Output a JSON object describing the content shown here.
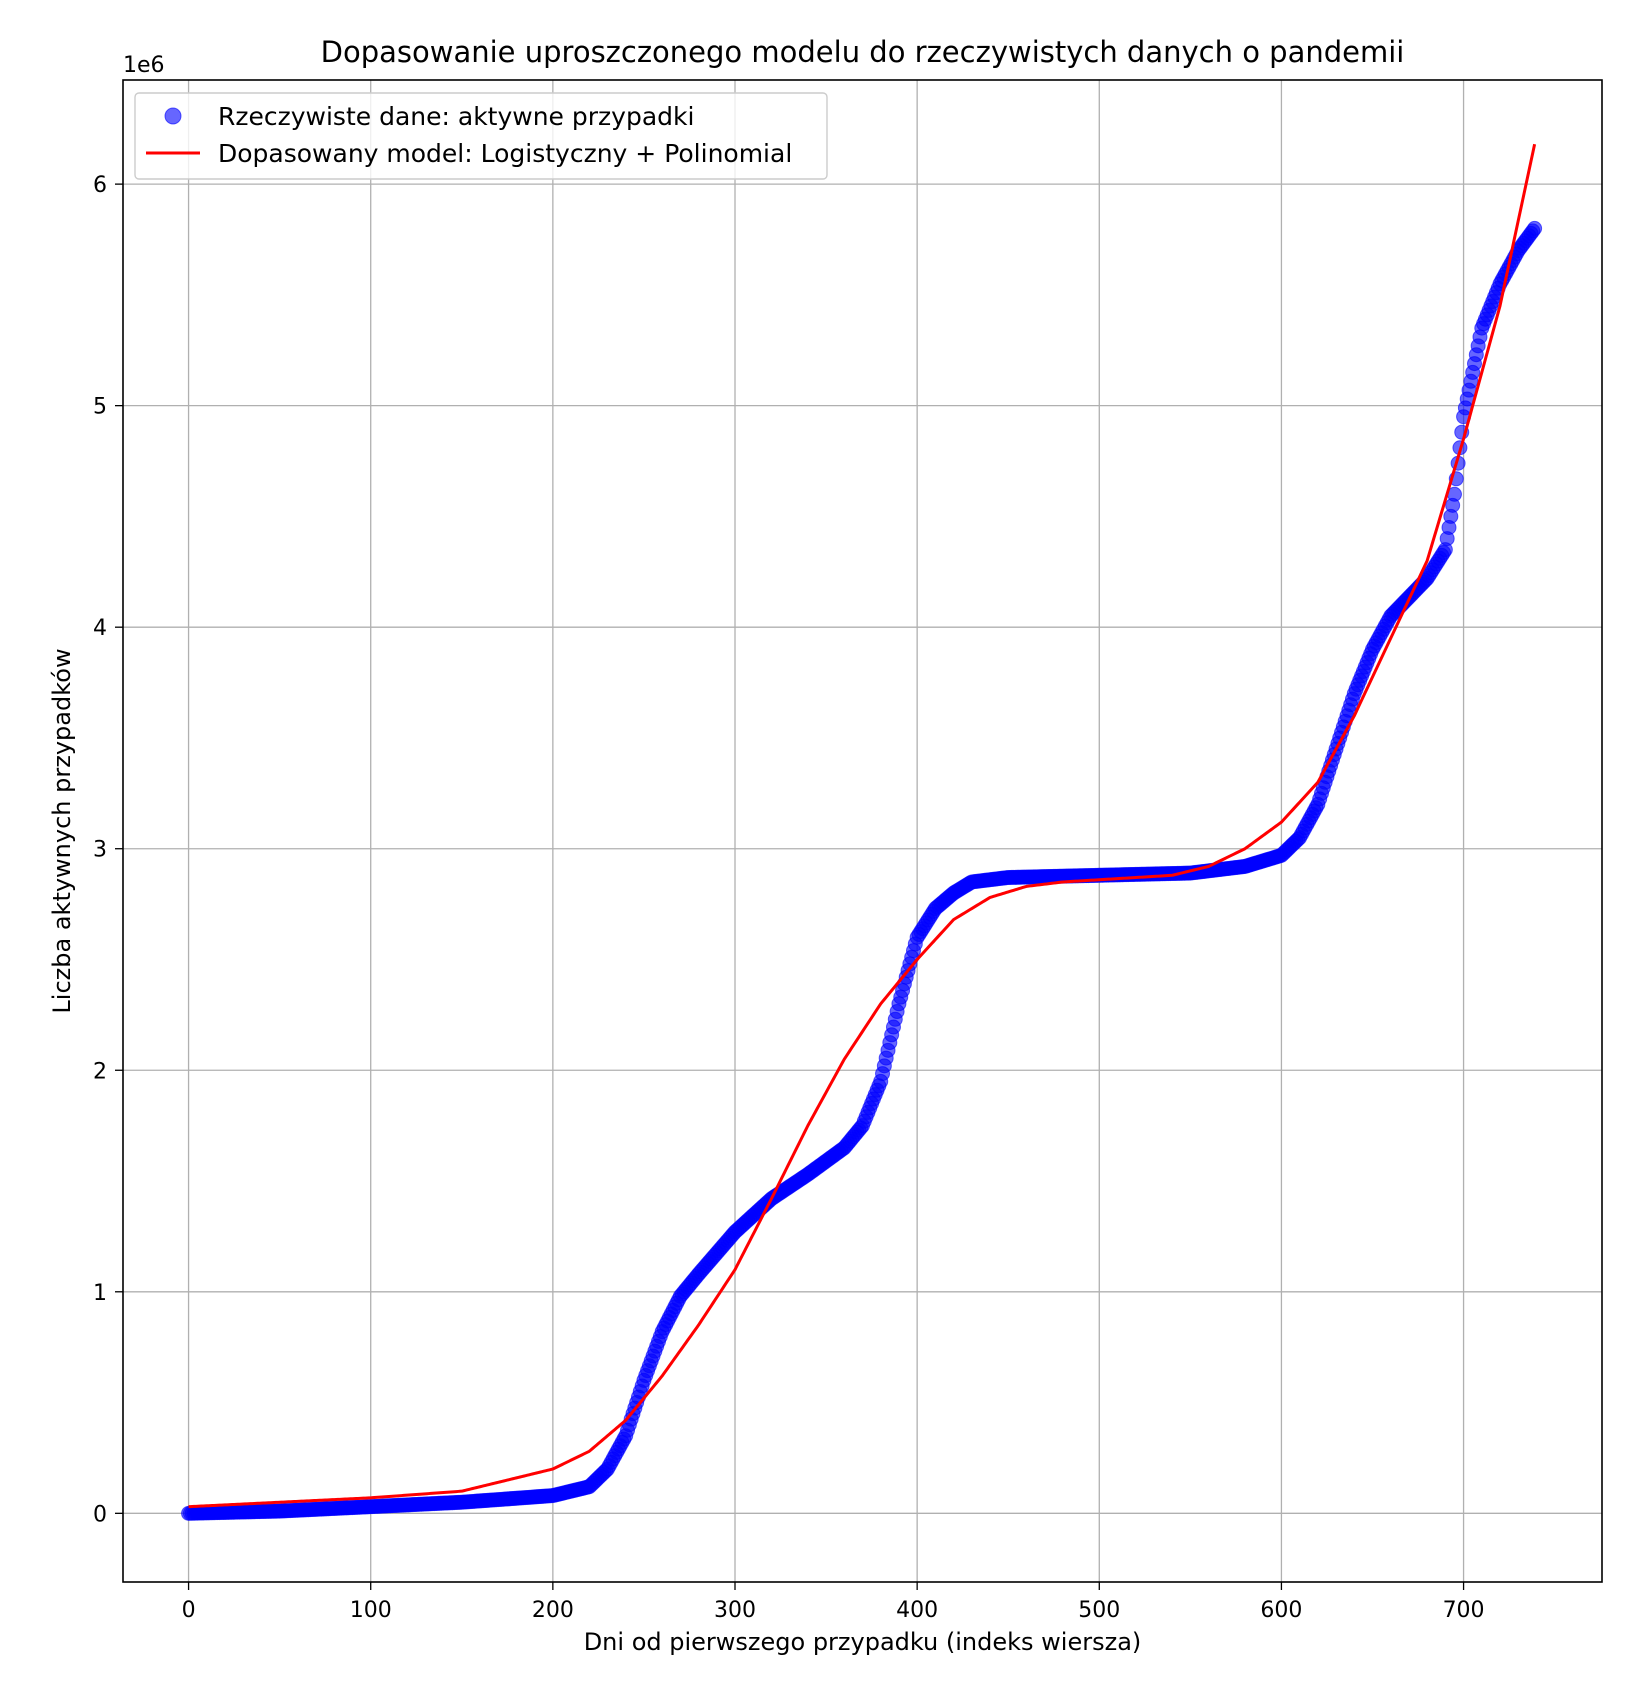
{
  "chart_data": {
    "type": "scatter",
    "title": "Dopasowanie uproszczonego modelu do rzeczywistych danych o pandemii",
    "xlabel": "Dni od pierwszego przypadku (indeks wiersza)",
    "ylabel": "Liczba aktywnych przypadków",
    "y_offset_text": "1e6",
    "xlim": [
      -36,
      776
    ],
    "ylim": [
      -0.31,
      6.47
    ],
    "x_ticks": [
      0,
      100,
      200,
      300,
      400,
      500,
      600,
      700
    ],
    "x_tick_labels": [
      "0",
      "100",
      "200",
      "300",
      "400",
      "500",
      "600",
      "700"
    ],
    "y_ticks": [
      0,
      1,
      2,
      3,
      4,
      5,
      6
    ],
    "y_tick_labels": [
      "0",
      "1",
      "2",
      "3",
      "4",
      "5",
      "6"
    ],
    "grid": true,
    "legend_position": "top-left",
    "series": [
      {
        "name": "Rzeczywiste dane: aktywne przypadki",
        "kind": "scatter",
        "color": "#0000ff",
        "x_range": [
          0,
          739
        ],
        "anchors": [
          [
            0,
            0.0
          ],
          [
            50,
            0.01
          ],
          [
            100,
            0.03
          ],
          [
            150,
            0.05
          ],
          [
            200,
            0.08
          ],
          [
            220,
            0.12
          ],
          [
            230,
            0.2
          ],
          [
            240,
            0.35
          ],
          [
            250,
            0.6
          ],
          [
            260,
            0.82
          ],
          [
            270,
            0.98
          ],
          [
            280,
            1.08
          ],
          [
            300,
            1.27
          ],
          [
            320,
            1.42
          ],
          [
            340,
            1.53
          ],
          [
            360,
            1.65
          ],
          [
            370,
            1.75
          ],
          [
            380,
            1.95
          ],
          [
            390,
            2.3
          ],
          [
            400,
            2.6
          ],
          [
            410,
            2.73
          ],
          [
            420,
            2.8
          ],
          [
            430,
            2.85
          ],
          [
            450,
            2.87
          ],
          [
            500,
            2.88
          ],
          [
            550,
            2.89
          ],
          [
            580,
            2.92
          ],
          [
            600,
            2.97
          ],
          [
            610,
            3.05
          ],
          [
            620,
            3.2
          ],
          [
            630,
            3.45
          ],
          [
            640,
            3.7
          ],
          [
            650,
            3.9
          ],
          [
            660,
            4.05
          ],
          [
            680,
            4.22
          ],
          [
            690,
            4.35
          ],
          [
            695,
            4.6
          ],
          [
            700,
            4.95
          ],
          [
            705,
            5.15
          ],
          [
            710,
            5.35
          ],
          [
            720,
            5.55
          ],
          [
            730,
            5.7
          ],
          [
            739,
            5.8
          ]
        ]
      },
      {
        "name": "Dopasowany model: Logistyczny + Polinomial",
        "kind": "line",
        "color": "#ff0000",
        "x_range": [
          0,
          739
        ],
        "anchors": [
          [
            0,
            0.03
          ],
          [
            50,
            0.05
          ],
          [
            100,
            0.07
          ],
          [
            150,
            0.1
          ],
          [
            200,
            0.2
          ],
          [
            220,
            0.28
          ],
          [
            240,
            0.42
          ],
          [
            260,
            0.62
          ],
          [
            280,
            0.85
          ],
          [
            300,
            1.1
          ],
          [
            320,
            1.42
          ],
          [
            340,
            1.75
          ],
          [
            360,
            2.05
          ],
          [
            380,
            2.3
          ],
          [
            400,
            2.5
          ],
          [
            420,
            2.68
          ],
          [
            440,
            2.78
          ],
          [
            460,
            2.83
          ],
          [
            480,
            2.85
          ],
          [
            500,
            2.86
          ],
          [
            540,
            2.88
          ],
          [
            560,
            2.92
          ],
          [
            580,
            3.0
          ],
          [
            600,
            3.12
          ],
          [
            620,
            3.3
          ],
          [
            640,
            3.6
          ],
          [
            660,
            3.95
          ],
          [
            680,
            4.3
          ],
          [
            700,
            4.85
          ],
          [
            720,
            5.45
          ],
          [
            739,
            6.18
          ]
        ]
      }
    ]
  }
}
